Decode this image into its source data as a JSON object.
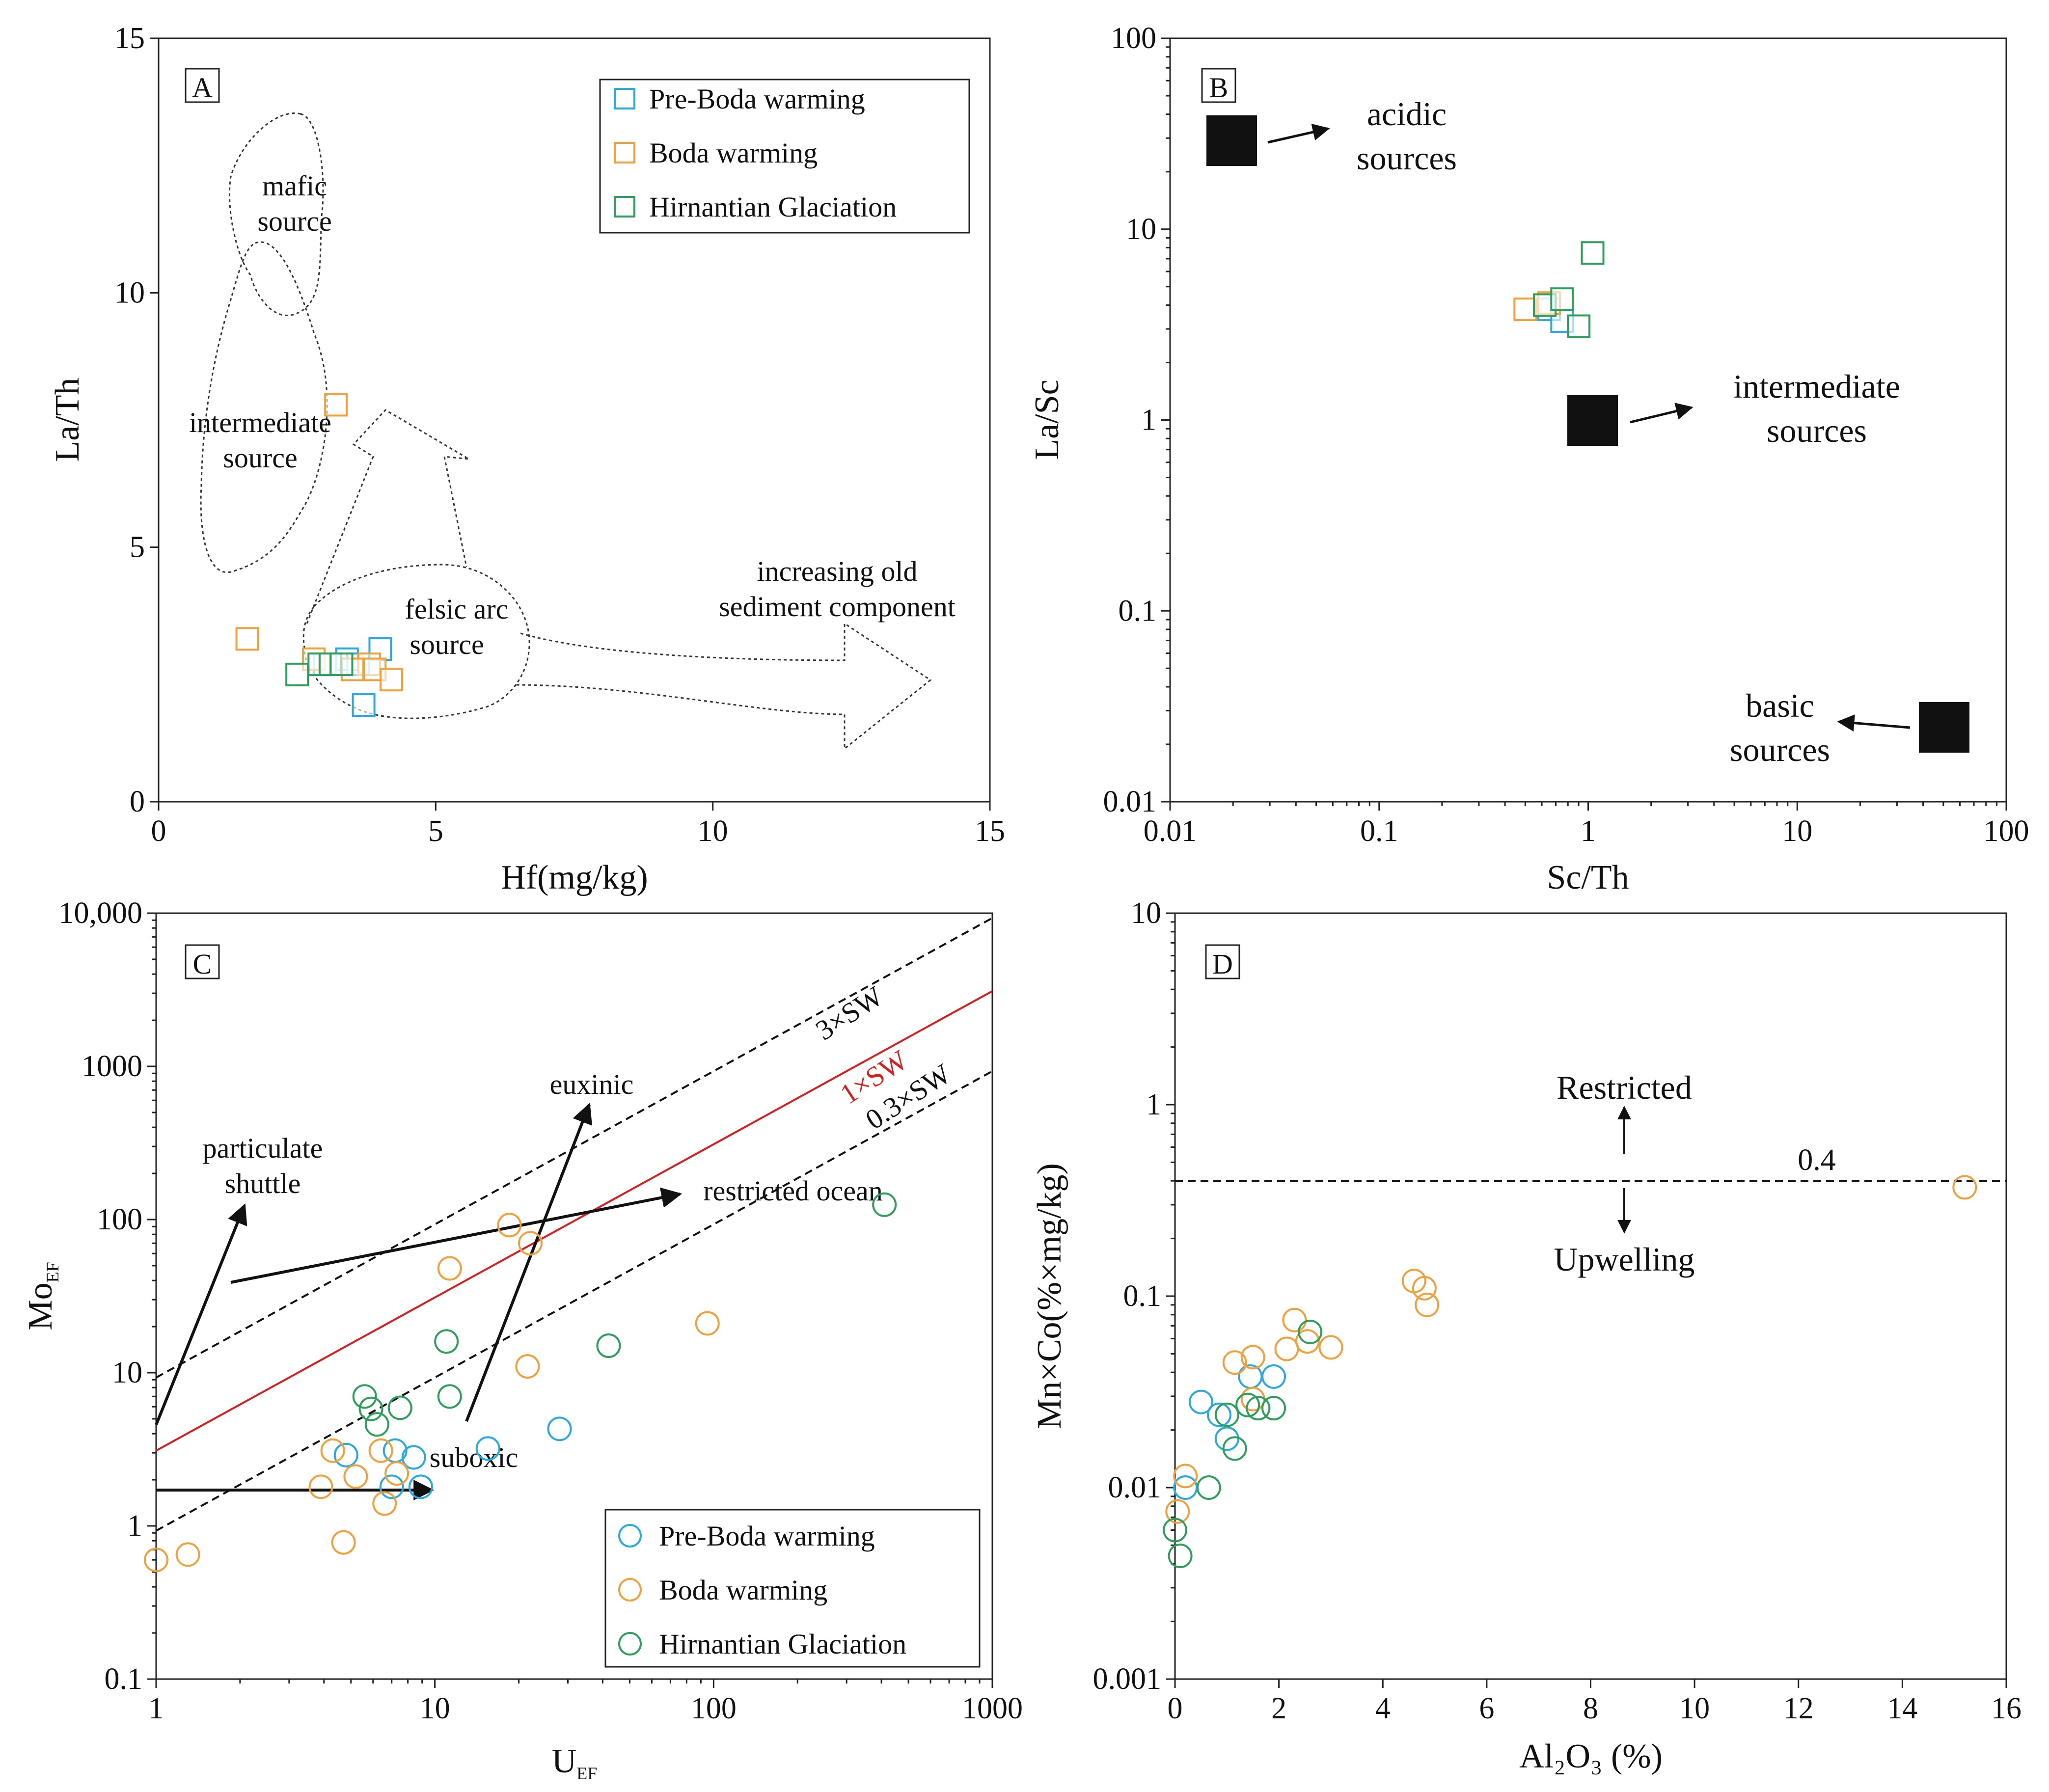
{
  "colors": {
    "pre_boda": "#2aa9df",
    "boda": "#f0a03c",
    "hirnantian": "#2f9e5c",
    "seawater_line": "#d62020"
  },
  "legend_labels": {
    "pre_boda": "Pre-Boda warming",
    "boda": "Boda warming",
    "hirnantian": "Hirnantian Glaciation"
  },
  "chart_data": [
    {
      "panel": "A",
      "type": "scatter",
      "marker": "square",
      "xlabel": "Hf(mg/kg)",
      "ylabel": "La/Th",
      "xlim": [
        0,
        15
      ],
      "ylim": [
        0,
        15
      ],
      "xticks": [
        "0",
        "5",
        "10",
        "15"
      ],
      "yticks": [
        "0",
        "5",
        "10",
        "15"
      ],
      "legend": "top-right",
      "series": [
        {
          "name": "Pre-Boda warming",
          "group": "pre_boda",
          "points": [
            [
              3.0,
              2.7
            ],
            [
              3.4,
              2.8
            ],
            [
              3.6,
              2.7
            ],
            [
              4.0,
              3.0
            ],
            [
              3.7,
              1.9
            ]
          ]
        },
        {
          "name": "Boda warming",
          "group": "boda",
          "points": [
            [
              1.6,
              3.2
            ],
            [
              2.8,
              2.8
            ],
            [
              3.2,
              7.8
            ],
            [
              3.8,
              2.7
            ],
            [
              3.9,
              2.6
            ],
            [
              4.2,
              2.4
            ],
            [
              3.5,
              2.6
            ]
          ]
        },
        {
          "name": "Hirnantian Glaciation",
          "group": "hirnantian",
          "points": [
            [
              2.5,
              2.5
            ],
            [
              2.9,
              2.7
            ],
            [
              3.1,
              2.7
            ],
            [
              3.3,
              2.7
            ]
          ]
        }
      ],
      "annotations": {
        "mafic": [
          "mafic",
          "source"
        ],
        "intermediate": [
          "intermediate",
          "source"
        ],
        "felsic": [
          "felsic arc",
          "source"
        ],
        "old_sediment": [
          "increasing old",
          "sediment component"
        ]
      }
    },
    {
      "panel": "B",
      "type": "scatter",
      "marker": "square",
      "xlabel": "Sc/Th",
      "ylabel": "La/Sc",
      "xscale": "log",
      "yscale": "log",
      "xlim": [
        0.01,
        100
      ],
      "ylim": [
        0.01,
        100
      ],
      "xticks": [
        "0.01",
        "0.1",
        "1",
        "10",
        "100"
      ],
      "yticks": [
        "0.01",
        "0.1",
        "1",
        "10",
        "100"
      ],
      "series": [
        {
          "name": "Pre-Boda warming",
          "group": "pre_boda",
          "points": [
            [
              0.65,
              3.8
            ],
            [
              0.75,
              3.3
            ]
          ]
        },
        {
          "name": "Boda warming",
          "group": "boda",
          "points": [
            [
              0.5,
              3.8
            ],
            [
              0.65,
              4.1
            ]
          ]
        },
        {
          "name": "Hirnantian Glaciation",
          "group": "hirnantian",
          "points": [
            [
              0.62,
              4.0
            ],
            [
              0.75,
              4.3
            ],
            [
              0.9,
              3.1
            ],
            [
              1.05,
              7.5
            ]
          ]
        }
      ],
      "reference_points": [
        {
          "label": [
            "acidic",
            "sources"
          ],
          "x": 0.018,
          "y": 28
        },
        {
          "label": [
            "intermediate",
            "sources"
          ],
          "x": 1.0,
          "y": 1.0
        },
        {
          "label": [
            "basic",
            "sources"
          ],
          "x": 50,
          "y": 0.025
        }
      ]
    },
    {
      "panel": "C",
      "type": "scatter",
      "marker": "circle",
      "xlabel": "U",
      "xlabel_sub": "EF",
      "ylabel": "Mo",
      "ylabel_sub": "EF",
      "xscale": "log",
      "yscale": "log",
      "xlim": [
        1,
        1000
      ],
      "ylim": [
        0.1,
        10000
      ],
      "xticks": [
        "1",
        "10",
        "100",
        "1000"
      ],
      "yticks": [
        "0.1",
        "1",
        "10",
        "100",
        "1000",
        "10,000"
      ],
      "legend": "bottom-right",
      "reference_lines": [
        {
          "label": "3×SW",
          "factor": 9.3,
          "style": "dashed"
        },
        {
          "label": "1×SW",
          "factor": 3.1,
          "style": "solid"
        },
        {
          "label": "0.3×SW",
          "factor": 0.93,
          "style": "dashed"
        }
      ],
      "series": [
        {
          "name": "Pre-Boda warming",
          "group": "pre_boda",
          "points": [
            [
              4.8,
              2.9
            ],
            [
              7.2,
              3.1
            ],
            [
              7.0,
              1.8
            ],
            [
              8.4,
              2.8
            ],
            [
              8.9,
              1.8
            ],
            [
              15.5,
              3.2
            ],
            [
              28,
              4.3
            ]
          ]
        },
        {
          "name": "Boda warming",
          "group": "boda",
          "points": [
            [
              1.0,
              0.6
            ],
            [
              1.3,
              0.65
            ],
            [
              3.9,
              1.8
            ],
            [
              4.3,
              3.1
            ],
            [
              4.7,
              0.78
            ],
            [
              5.2,
              2.1
            ],
            [
              6.4,
              3.1
            ],
            [
              6.6,
              1.4
            ],
            [
              7.3,
              2.2
            ],
            [
              11.3,
              48
            ],
            [
              18.5,
              92
            ],
            [
              21.5,
              11
            ],
            [
              22,
              70
            ],
            [
              95,
              21
            ]
          ]
        },
        {
          "name": "Hirnantian Glaciation",
          "group": "hirnantian",
          "points": [
            [
              5.6,
              7.0
            ],
            [
              5.9,
              5.8
            ],
            [
              6.2,
              4.6
            ],
            [
              7.5,
              5.9
            ],
            [
              11.0,
              16
            ],
            [
              11.3,
              7.0
            ],
            [
              42,
              15
            ],
            [
              410,
              125
            ]
          ]
        }
      ],
      "annotations": {
        "euxinic": "euxinic",
        "particulate": [
          "particulate",
          "shuttle"
        ],
        "restricted": "restricted ocean",
        "suboxic": "suboxic"
      }
    },
    {
      "panel": "D",
      "type": "scatter",
      "marker": "circle",
      "xlabel": "Al₂O₃ (%)",
      "ylabel": "Mn×Co(%×mg/kg)",
      "yscale": "log",
      "xlim": [
        0,
        16
      ],
      "ylim": [
        0.001,
        10
      ],
      "xticks": [
        "0",
        "2",
        "4",
        "6",
        "8",
        "10",
        "12",
        "14",
        "16"
      ],
      "yticks": [
        "0.001",
        "0.01",
        "0.1",
        "1",
        "10"
      ],
      "threshold": {
        "value": 0.4,
        "label": "0.4",
        "above": "Restricted",
        "below": "Upwelling"
      },
      "series": [
        {
          "name": "Pre-Boda warming",
          "group": "pre_boda",
          "points": [
            [
              0.5,
              0.028
            ],
            [
              0.85,
              0.024
            ],
            [
              1.0,
              0.018
            ],
            [
              1.45,
              0.038
            ],
            [
              1.9,
              0.038
            ],
            [
              0.2,
              0.01
            ]
          ]
        },
        {
          "name": "Boda warming",
          "group": "boda",
          "points": [
            [
              0.05,
              0.0075
            ],
            [
              0.2,
              0.0115
            ],
            [
              1.15,
              0.045
            ],
            [
              1.5,
              0.048
            ],
            [
              1.5,
              0.029
            ],
            [
              2.15,
              0.053
            ],
            [
              2.3,
              0.075
            ],
            [
              2.55,
              0.058
            ],
            [
              3.0,
              0.054
            ],
            [
              4.6,
              0.12
            ],
            [
              4.8,
              0.11
            ],
            [
              4.85,
              0.09
            ],
            [
              15.2,
              0.37
            ]
          ]
        },
        {
          "name": "Hirnantian Glaciation",
          "group": "hirnantian",
          "points": [
            [
              0.0,
              0.006
            ],
            [
              0.1,
              0.0044
            ],
            [
              0.65,
              0.01
            ],
            [
              1.0,
              0.024
            ],
            [
              1.15,
              0.016
            ],
            [
              1.4,
              0.027
            ],
            [
              1.6,
              0.026
            ],
            [
              1.9,
              0.026
            ],
            [
              2.6,
              0.065
            ]
          ]
        }
      ]
    }
  ]
}
